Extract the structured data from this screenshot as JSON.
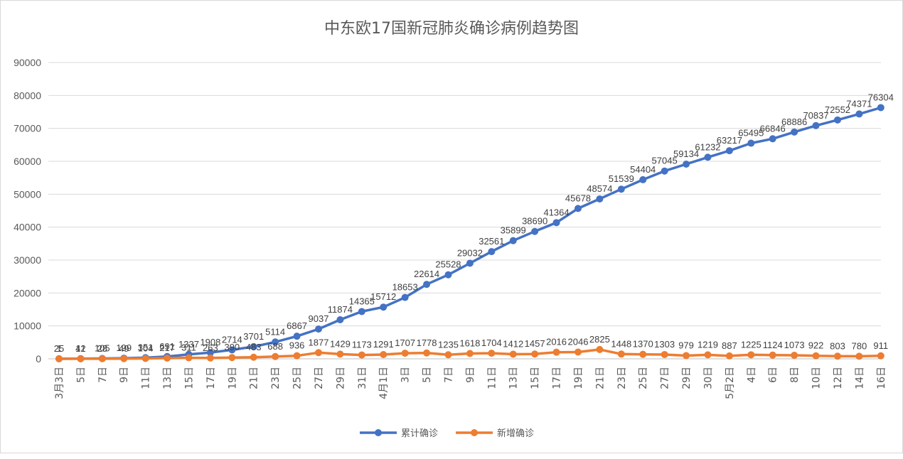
{
  "chart_data": {
    "type": "line",
    "title": "中东欧17国新冠肺炎确诊病例趋势图",
    "ylim": [
      0,
      90000
    ],
    "yticks": [
      0,
      10000,
      20000,
      30000,
      40000,
      50000,
      60000,
      70000,
      80000,
      90000
    ],
    "grid": true,
    "legend_position": "bottom",
    "categories": [
      "3月3日",
      "5日",
      "7日",
      "9日",
      "11日",
      "13日",
      "15日",
      "17日",
      "19日",
      "21日",
      "23日",
      "25日",
      "27日",
      "29日",
      "31日",
      "4月1日",
      "3日",
      "5日",
      "7日",
      "9日",
      "11日",
      "13日",
      "15日",
      "17日",
      "19日",
      "21日",
      "23日",
      "25日",
      "27日",
      "29日",
      "30日",
      "5月2日",
      "4日",
      "6日",
      "8日",
      "10日",
      "12日",
      "14日",
      "16日"
    ],
    "series": [
      {
        "name": "累计确诊",
        "color": "#4472C4",
        "values": [
          25,
          41,
          105,
          199,
          351,
          691,
          1337,
          1908,
          2714,
          3701,
          5114,
          6867,
          9037,
          11874,
          14365,
          15712,
          18653,
          22614,
          25528,
          29032,
          32561,
          35899,
          38690,
          41364,
          45678,
          48574,
          51539,
          54404,
          57045,
          59134,
          61232,
          63217,
          65495,
          66846,
          68886,
          70837,
          72552,
          74371,
          76304
        ]
      },
      {
        "name": "新增确诊",
        "color": "#ED7D31",
        "values": [
          1,
          12,
          28,
          49,
          104,
          217,
          311,
          263,
          390,
          483,
          688,
          936,
          1877,
          1429,
          1173,
          1291,
          1707,
          1778,
          1235,
          1618,
          1704,
          1412,
          1457,
          2016,
          2046,
          2825,
          1448,
          1370,
          1303,
          979,
          1219,
          887,
          1225,
          1124,
          1073,
          922,
          803,
          780,
          911
        ]
      }
    ]
  }
}
